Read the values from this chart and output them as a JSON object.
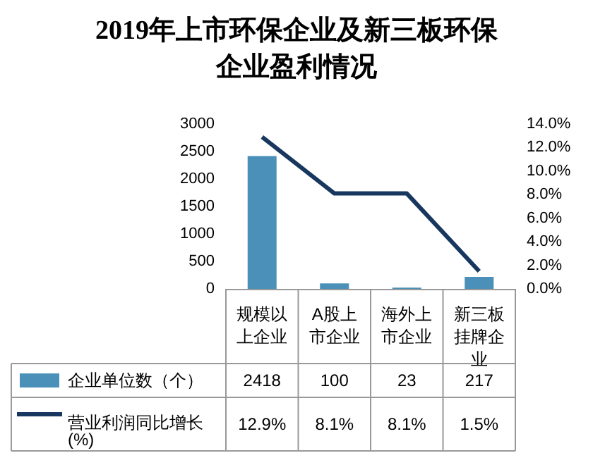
{
  "chart_data": {
    "type": "bar",
    "title": "2019年上市环保企业及新三板环保企业盈利情况",
    "categories": [
      "规模以上企业",
      "A股上市企业",
      "海外上市企业",
      "新三板挂牌企业"
    ],
    "series": [
      {
        "name": "企业单位数（个）",
        "color": "#4a90b8",
        "values": [
          2418,
          100,
          23,
          217
        ],
        "value_labels": [
          "2418",
          "100",
          "23",
          "217"
        ]
      },
      {
        "name": "营业利润同比增长(%)",
        "type": "line",
        "axis": "y2",
        "color": "#17375e",
        "values": [
          12.9,
          8.1,
          8.1,
          1.5
        ],
        "value_labels": [
          "12.9%",
          "8.1%",
          "8.1%",
          "1.5%"
        ]
      }
    ],
    "ylim": [
      0,
      3000
    ],
    "yticks": [
      0,
      500,
      1000,
      1500,
      2000,
      2500,
      3000
    ],
    "y2lim": [
      0,
      14
    ],
    "y2ticks": [
      {
        "value": 0,
        "label": "0.0%"
      },
      {
        "value": 2,
        "label": "2.0%"
      },
      {
        "value": 4,
        "label": "4.0%"
      },
      {
        "value": 6,
        "label": "6.0%"
      },
      {
        "value": 8,
        "label": "8.0%"
      },
      {
        "value": 10,
        "label": "10.0%"
      },
      {
        "value": 12,
        "label": "12.0%"
      },
      {
        "value": 14,
        "label": "14.0%"
      }
    ],
    "grid": false,
    "legend": "bottom",
    "marker": "none"
  }
}
